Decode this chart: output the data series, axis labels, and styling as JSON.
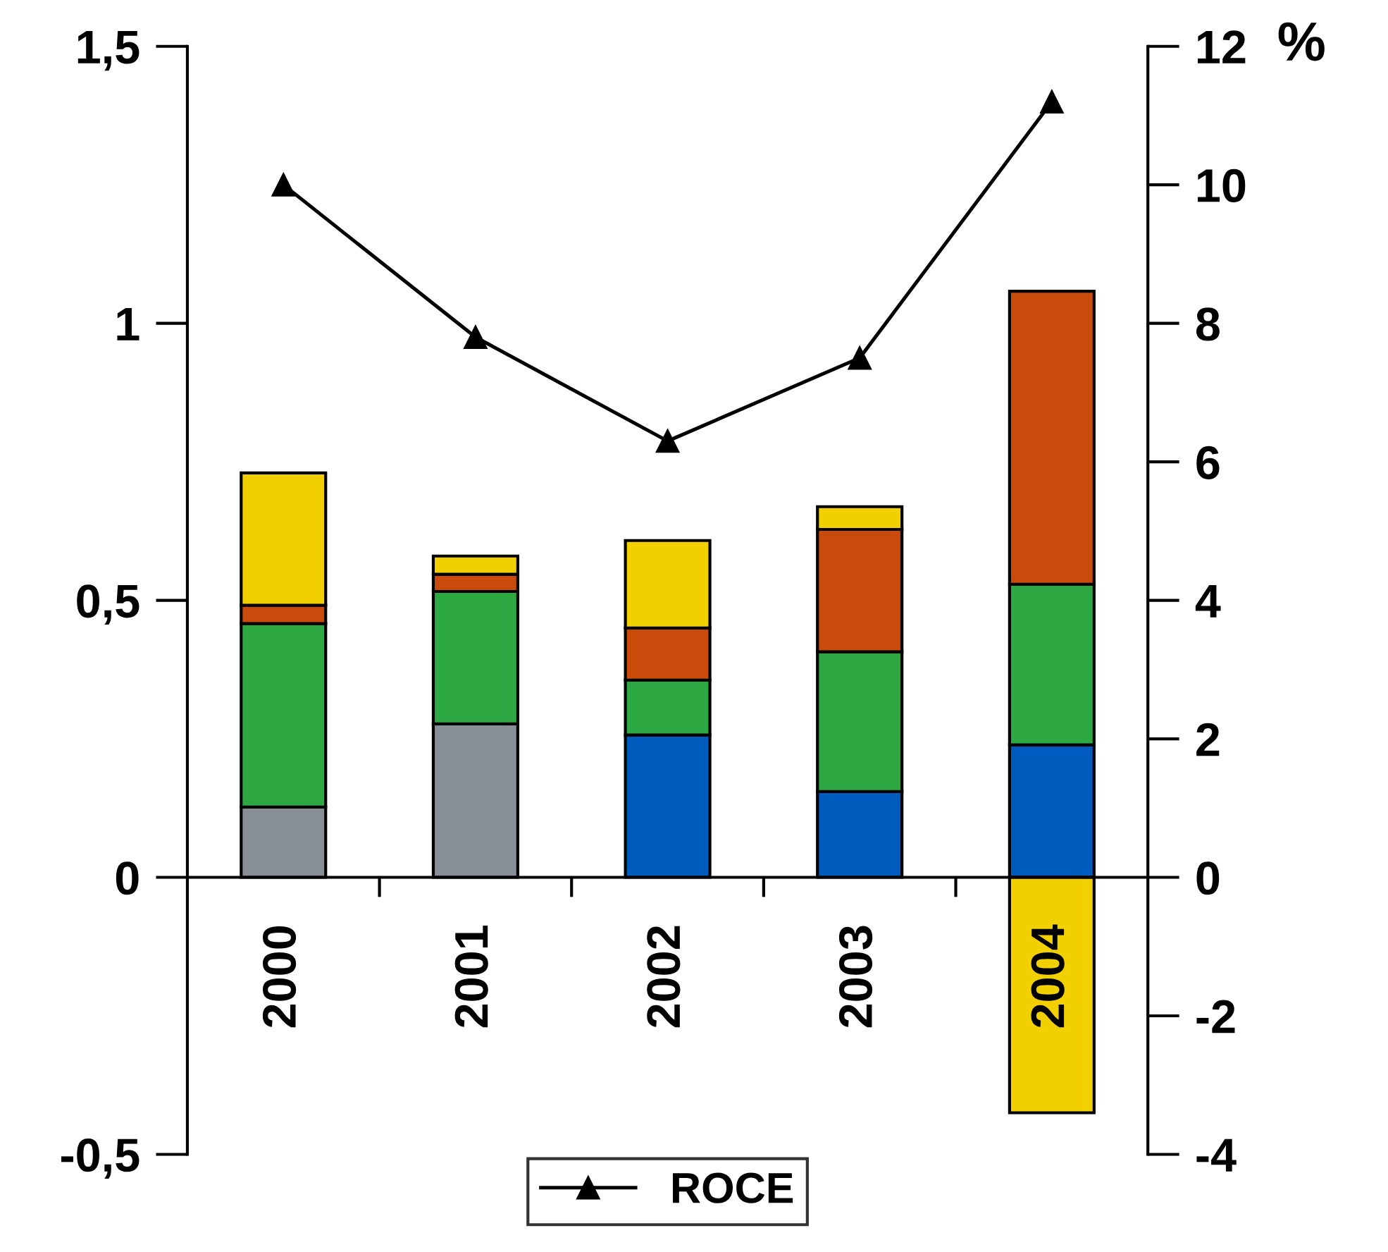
{
  "chart_data": {
    "type": "bar",
    "stacked": true,
    "categories": [
      "2000",
      "2001",
      "2002",
      "2003",
      "2004"
    ],
    "series": [
      {
        "color": "#878e95",
        "values": [
          0.127,
          0.277,
          null,
          null,
          null
        ]
      },
      {
        "color": "#005bbf",
        "values": [
          null,
          null,
          0.257,
          0.155,
          0.239
        ]
      },
      {
        "color": "#2ea843",
        "values": [
          0.331,
          0.239,
          0.099,
          0.252,
          0.29
        ]
      },
      {
        "color": "#c84b0c",
        "values": [
          0.033,
          0.031,
          0.094,
          0.221,
          0.529
        ]
      },
      {
        "color": "#f2d000",
        "values": [
          0.239,
          0.033,
          0.158,
          0.041,
          -0.425
        ]
      },
      {
        "name": "ROCE",
        "type": "line",
        "axis": "y2",
        "color": "#000000",
        "marker": "triangle",
        "line_style": "solid",
        "values": [
          10.0,
          7.8,
          6.3,
          7.5,
          11.2
        ]
      }
    ],
    "ylim": [
      -0.5,
      1.5
    ],
    "yticks": [
      {
        "value": -0.5,
        "label": "-0,5"
      },
      0,
      {
        "value": 0.5,
        "label": "0,5"
      },
      1,
      {
        "value": 1.5,
        "label": "1,5"
      }
    ],
    "y2lim": [
      -4,
      12
    ],
    "y2ticks": [
      {
        "value": -4,
        "label": "-4"
      },
      {
        "value": -2,
        "label": "-2"
      },
      0,
      2,
      4,
      6,
      8,
      10,
      12
    ],
    "y2label": "%",
    "legend": "bottom",
    "grid": false
  }
}
